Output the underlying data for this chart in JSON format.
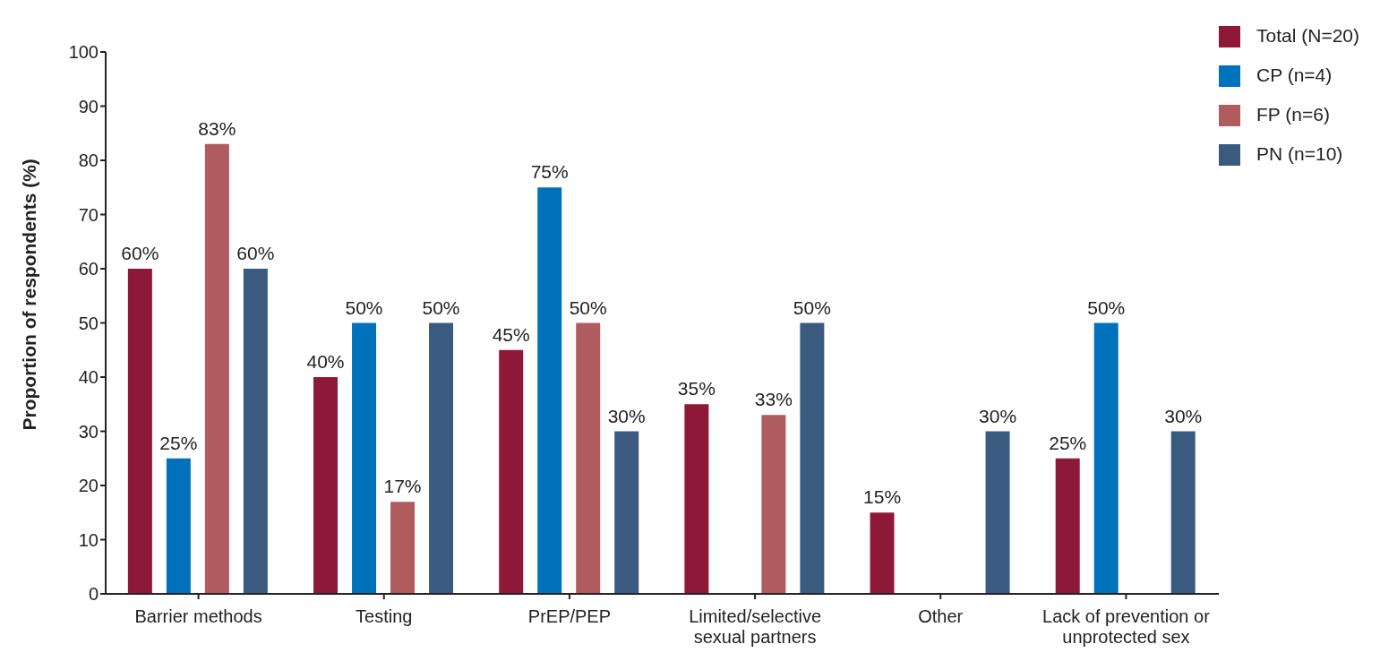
{
  "chart_data": {
    "type": "bar",
    "ylabel": "Proportion of respondents (%)",
    "categories": [
      "Barrier methods",
      "Testing",
      "PrEP/PEP",
      "Limited/selective sexual partners",
      "Other",
      "Lack of prevention or unprotected sex"
    ],
    "series": [
      {
        "name": "Total (N=20)",
        "color": "#8e1838",
        "values": [
          60,
          40,
          45,
          35,
          15,
          25
        ],
        "value_labels": [
          "60%",
          "40%",
          "45%",
          "35%",
          "15%",
          "25%"
        ]
      },
      {
        "name": "CP (n=4)",
        "color": "#0072bc",
        "values": [
          25,
          50,
          75,
          null,
          null,
          50
        ],
        "value_labels": [
          "25%",
          "50%",
          "75%",
          null,
          null,
          "50%"
        ]
      },
      {
        "name": "FP (n=6)",
        "color": "#b05c5e",
        "values": [
          83,
          17,
          50,
          33,
          null,
          null
        ],
        "value_labels": [
          "83%",
          "17%",
          "50%",
          "33%",
          null,
          null
        ]
      },
      {
        "name": "PN (n=10)",
        "color": "#3b5a80",
        "values": [
          60,
          50,
          30,
          50,
          30,
          30
        ],
        "value_labels": [
          "60%",
          "50%",
          "30%",
          "50%",
          "30%",
          "30%"
        ]
      }
    ],
    "ylim": [
      0,
      100
    ],
    "yticks": [
      0,
      10,
      20,
      30,
      40,
      50,
      60,
      70,
      80,
      90,
      100
    ],
    "grid": false,
    "legend": "top right"
  }
}
